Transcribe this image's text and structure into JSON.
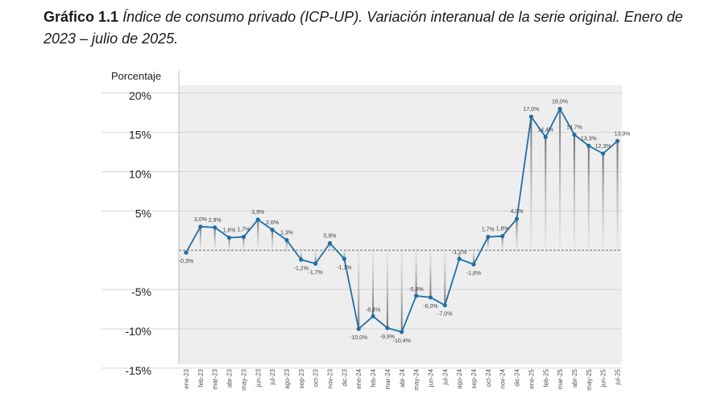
{
  "title": {
    "lead": "Gráfico 1.1",
    "rest": "Índice de consumo privado (ICP-UP). Variación interanual de la serie original. Enero de 2023 – julio de 2025."
  },
  "colors": {
    "line": "#1f6fa8",
    "plot_bg": "#eeeeee",
    "grid": "#d6d6d6"
  },
  "chart_data": {
    "type": "line",
    "title": "",
    "xlabel": "",
    "ylabel": "Porcentaje",
    "ylim": [
      -15,
      20
    ],
    "yticks": [
      {
        "value": 20,
        "label": "20%"
      },
      {
        "value": 15,
        "label": "15%"
      },
      {
        "value": 10,
        "label": "10%"
      },
      {
        "value": 5,
        "label": "5%"
      },
      {
        "value": -5,
        "label": "-5%"
      },
      {
        "value": -10,
        "label": "-10%"
      },
      {
        "value": -15,
        "label": "-15%"
      }
    ],
    "grid": true,
    "categories": [
      "ene-23",
      "feb-23",
      "mar-23",
      "abr-23",
      "may-23",
      "jun-23",
      "jul-23",
      "ago-23",
      "sep-23",
      "oct-23",
      "nov-23",
      "dic-23",
      "ene-24",
      "feb-24",
      "mar-24",
      "abr-24",
      "may-24",
      "jun-24",
      "jul-24",
      "ago-24",
      "sep-24",
      "oct-24",
      "nov-24",
      "dic-24",
      "ene-25",
      "feb-25",
      "mar-25",
      "abr-25",
      "may-25",
      "jun-25",
      "jul-25"
    ],
    "series": [
      {
        "values": [
          -0.3,
          3.0,
          2.9,
          1.6,
          1.7,
          3.9,
          2.6,
          1.3,
          -1.2,
          -1.7,
          0.9,
          -1.1,
          -10.0,
          -8.4,
          -9.9,
          -10.4,
          -5.8,
          -6.0,
          -7.0,
          -1.1,
          -1.8,
          1.7,
          1.8,
          4.0,
          17.0,
          14.4,
          18.0,
          14.7,
          13.3,
          12.3,
          13.9
        ],
        "labels": [
          "-0,3%",
          "3,0%",
          "2,9%",
          "1,6%",
          "1,7%",
          "3,9%",
          "2,6%",
          "1,3%",
          "-1,2%",
          "-1,7%",
          "0,9%",
          "-1,1%",
          "-10,0%",
          "-8,4%",
          "-9,9%",
          "-10,4%",
          "-5,8%",
          "-6,0%",
          "-7,0%",
          "-1,1%",
          "-1,8%",
          "1,7%",
          "1,8%",
          "4,0%",
          "17,0%",
          "14,4%",
          "18,0%",
          "14,7%",
          "13,3%",
          "12,3%",
          "13,9%"
        ]
      }
    ]
  }
}
